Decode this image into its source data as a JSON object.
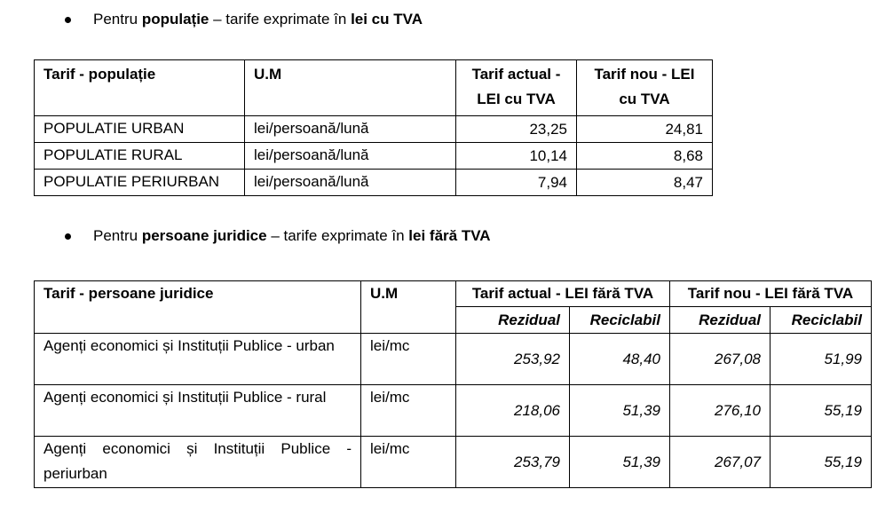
{
  "section1": {
    "prefix": "Pentru ",
    "bold1": "populație",
    "middle": " – tarife exprimate în ",
    "bold2": "lei cu TVA"
  },
  "table1": {
    "headers": [
      "Tarif - populație",
      "U.M",
      "Tarif actual - LEI cu TVA",
      "Tarif nou - LEI cu TVA"
    ],
    "rows": [
      [
        "POPULATIE URBAN",
        "lei/persoană/lună",
        "23,25",
        "24,81"
      ],
      [
        "POPULATIE RURAL",
        "lei/persoană/lună",
        "10,14",
        "8,68"
      ],
      [
        "POPULATIE PERIURBAN",
        "lei/persoană/lună",
        "7,94",
        "8,47"
      ]
    ]
  },
  "section2": {
    "prefix": "Pentru ",
    "bold1": "persoane juridice",
    "middle": " – tarife exprimate în ",
    "bold2": "lei fără TVA"
  },
  "table2": {
    "headers": [
      "Tarif - persoane juridice",
      "U.M",
      "Tarif actual - LEI fără TVA",
      "Tarif nou - LEI fără TVA"
    ],
    "subheaders": [
      "Rezidual",
      "Reciclabil",
      "Rezidual",
      "Reciclabil"
    ],
    "rows": [
      [
        "Agenți economici și Instituții Publice - urban",
        "lei/mc",
        "253,92",
        "48,40",
        "267,08",
        "51,99"
      ],
      [
        "Agenți economici și Instituții Publice - rural",
        "lei/mc",
        "218,06",
        "51,39",
        "276,10",
        "55,19"
      ],
      [
        "Agenți economici și Instituții Publice - periurban",
        "lei/mc",
        "253,79",
        "51,39",
        "267,07",
        "55,19"
      ]
    ]
  }
}
